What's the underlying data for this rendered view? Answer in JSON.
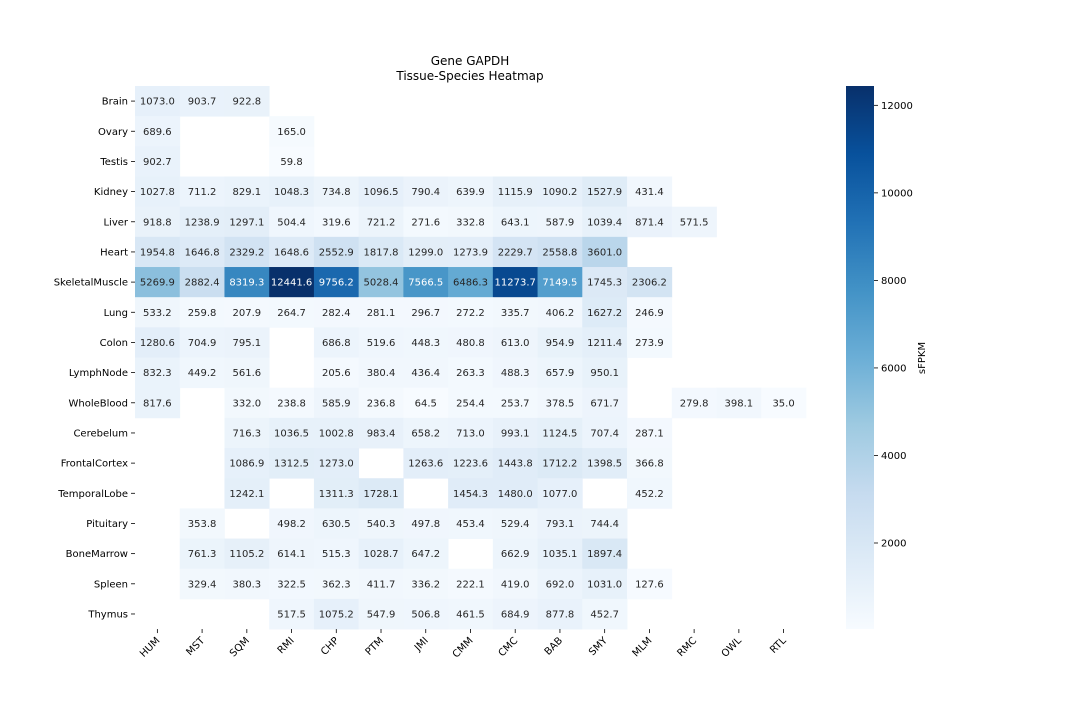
{
  "chart_data": {
    "type": "heatmap",
    "title": "Gene GAPDH",
    "subtitle": "Tissue-Species Heatmap",
    "xlabel": "",
    "ylabel": "",
    "colorbar_label": "sFPKM",
    "colormap": "Blues",
    "color_range": [
      35.0,
      12441.6
    ],
    "colorbar_ticks": [
      2000,
      4000,
      6000,
      8000,
      10000,
      12000
    ],
    "colors": {
      "low": "#f7fbff",
      "high": "#08306b",
      "annotation_dark": "#262626",
      "annotation_light": "#ffffff"
    },
    "columns": [
      "HUM",
      "MST",
      "SQM",
      "RMI",
      "CHP",
      "PTM",
      "JMI",
      "CMM",
      "CMC",
      "BAB",
      "SMY",
      "MLM",
      "RMC",
      "OWL",
      "RTL"
    ],
    "rows": [
      "Brain",
      "Ovary",
      "Testis",
      "Kidney",
      "Liver",
      "Heart",
      "SkeletalMuscle",
      "Lung",
      "Colon",
      "LymphNode",
      "WholeBlood",
      "Cerebelum",
      "FrontalCortex",
      "TemporalLobe",
      "Pituitary",
      "BoneMarrow",
      "Spleen",
      "Thymus"
    ],
    "values": [
      [
        1073.0,
        903.7,
        922.8,
        null,
        null,
        null,
        null,
        null,
        null,
        null,
        null,
        null,
        null,
        null,
        null
      ],
      [
        689.6,
        null,
        null,
        165.0,
        null,
        null,
        null,
        null,
        null,
        null,
        null,
        null,
        null,
        null,
        null
      ],
      [
        902.7,
        null,
        null,
        59.8,
        null,
        null,
        null,
        null,
        null,
        null,
        null,
        null,
        null,
        null,
        null
      ],
      [
        1027.8,
        711.2,
        829.1,
        1048.3,
        734.8,
        1096.5,
        790.4,
        639.9,
        1115.9,
        1090.2,
        1527.9,
        431.4,
        null,
        null,
        null
      ],
      [
        918.8,
        1238.9,
        1297.1,
        504.4,
        319.6,
        721.2,
        271.6,
        332.8,
        643.1,
        587.9,
        1039.4,
        871.4,
        571.5,
        null,
        null
      ],
      [
        1954.8,
        1646.8,
        2329.2,
        1648.6,
        2552.9,
        1817.8,
        1299.0,
        1273.9,
        2229.7,
        2558.8,
        3601.0,
        null,
        null,
        null,
        null
      ],
      [
        5269.9,
        2882.4,
        8319.3,
        12441.6,
        9756.2,
        5028.4,
        7566.5,
        6486.3,
        11273.7,
        7149.5,
        1745.3,
        2306.2,
        null,
        null,
        null
      ],
      [
        533.2,
        259.8,
        207.9,
        264.7,
        282.4,
        281.1,
        296.7,
        272.2,
        335.7,
        406.2,
        1627.2,
        246.9,
        null,
        null,
        null
      ],
      [
        1280.6,
        704.9,
        795.1,
        null,
        686.8,
        519.6,
        448.3,
        480.8,
        613.0,
        954.9,
        1211.4,
        273.9,
        null,
        null,
        null
      ],
      [
        832.3,
        449.2,
        561.6,
        null,
        205.6,
        380.4,
        436.4,
        263.3,
        488.3,
        657.9,
        950.1,
        null,
        null,
        null,
        null
      ],
      [
        817.6,
        null,
        332.0,
        238.8,
        585.9,
        236.8,
        64.5,
        254.4,
        253.7,
        378.5,
        671.7,
        null,
        279.8,
        398.1,
        35.0
      ],
      [
        null,
        null,
        716.3,
        1036.5,
        1002.8,
        983.4,
        658.2,
        713.0,
        993.1,
        1124.5,
        707.4,
        287.1,
        null,
        null,
        null
      ],
      [
        null,
        null,
        1086.9,
        1312.5,
        1273.0,
        null,
        1263.6,
        1223.6,
        1443.8,
        1712.2,
        1398.5,
        366.8,
        null,
        null,
        null
      ],
      [
        null,
        null,
        1242.1,
        null,
        1311.3,
        1728.1,
        null,
        1454.3,
        1480.0,
        1077.0,
        null,
        452.2,
        null,
        null,
        null
      ],
      [
        null,
        353.8,
        null,
        498.2,
        630.5,
        540.3,
        497.8,
        453.4,
        529.4,
        793.1,
        744.4,
        null,
        null,
        null,
        null
      ],
      [
        null,
        761.3,
        1105.2,
        614.1,
        515.3,
        1028.7,
        647.2,
        null,
        662.9,
        1035.1,
        1897.4,
        null,
        null,
        null,
        null
      ],
      [
        null,
        329.4,
        380.3,
        322.5,
        362.3,
        411.7,
        336.2,
        222.1,
        419.0,
        692.0,
        1031.0,
        127.6,
        null,
        null,
        null
      ],
      [
        null,
        null,
        null,
        517.5,
        1075.2,
        547.9,
        506.8,
        461.5,
        684.9,
        877.8,
        452.7,
        null,
        null,
        null,
        null
      ]
    ]
  }
}
